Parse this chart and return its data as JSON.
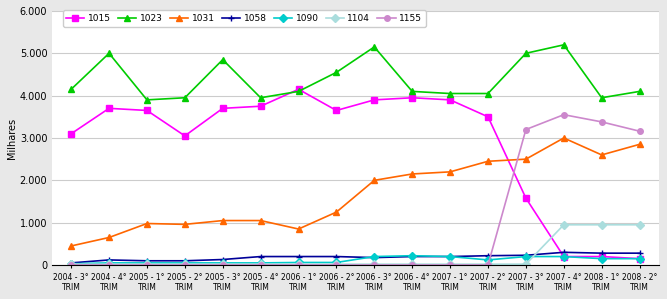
{
  "x_labels": [
    "2004 - 3°\nTRIM",
    "2004 - 4°\nTRIM",
    "2005 - 1°\nTRIM",
    "2005 - 2°\nTRIM",
    "2005 - 3°\nTRIM",
    "2005 - 4°\nTRIM",
    "2006 - 1°\nTRIM",
    "2006 - 2°\nTRIM",
    "2006 - 3°\nTRIM",
    "2006 - 4°\nTRIM",
    "2007 - 1°\nTRIM",
    "2007 - 2°\nTRIM",
    "2007 - 3°\nTRIM",
    "2007 - 4°\nTRIM",
    "2008 - 1°\nTRIM",
    "2008 - 2°\nTRIM"
  ],
  "series": {
    "1015": {
      "color": "#FF00FF",
      "marker": "s",
      "values": [
        3100,
        3700,
        3650,
        3050,
        3700,
        3750,
        4150,
        3650,
        3900,
        3950,
        3900,
        3500,
        1580,
        200,
        200,
        150
      ]
    },
    "1023": {
      "color": "#00CC00",
      "marker": "^",
      "values": [
        4150,
        5000,
        3900,
        3950,
        4850,
        3950,
        4100,
        4550,
        5150,
        4100,
        4050,
        4050,
        5000,
        5200,
        3950,
        4100
      ]
    },
    "1031": {
      "color": "#FF6600",
      "marker": "^",
      "values": [
        450,
        650,
        980,
        960,
        1050,
        1050,
        850,
        1250,
        2000,
        2150,
        2200,
        2450,
        2500,
        3000,
        2600,
        2850
      ]
    },
    "1058": {
      "color": "#000099",
      "marker": "+",
      "values": [
        50,
        120,
        100,
        100,
        130,
        200,
        200,
        200,
        175,
        200,
        200,
        220,
        230,
        300,
        280,
        280
      ]
    },
    "1090": {
      "color": "#00CCCC",
      "marker": "D",
      "values": [
        30,
        50,
        50,
        50,
        50,
        50,
        60,
        60,
        200,
        220,
        200,
        120,
        200,
        200,
        150,
        150
      ]
    },
    "1104": {
      "color": "#AADDDD",
      "marker": "D",
      "values": [
        20,
        20,
        20,
        20,
        20,
        20,
        20,
        20,
        20,
        20,
        20,
        20,
        20,
        950,
        950,
        950
      ]
    },
    "1155": {
      "color": "#CC88CC",
      "marker": "o",
      "values": [
        0,
        0,
        0,
        0,
        0,
        0,
        0,
        0,
        0,
        0,
        0,
        0,
        3200,
        3550,
        3380,
        3160
      ]
    }
  },
  "ylim": [
    0,
    6000
  ],
  "yticks": [
    0,
    1000,
    2000,
    3000,
    4000,
    5000,
    6000
  ],
  "ylabel": "Milhares",
  "bg_color": "#FFFFFF",
  "grid_color": "#CCCCCC",
  "fig_bg": "#E8E8E8"
}
